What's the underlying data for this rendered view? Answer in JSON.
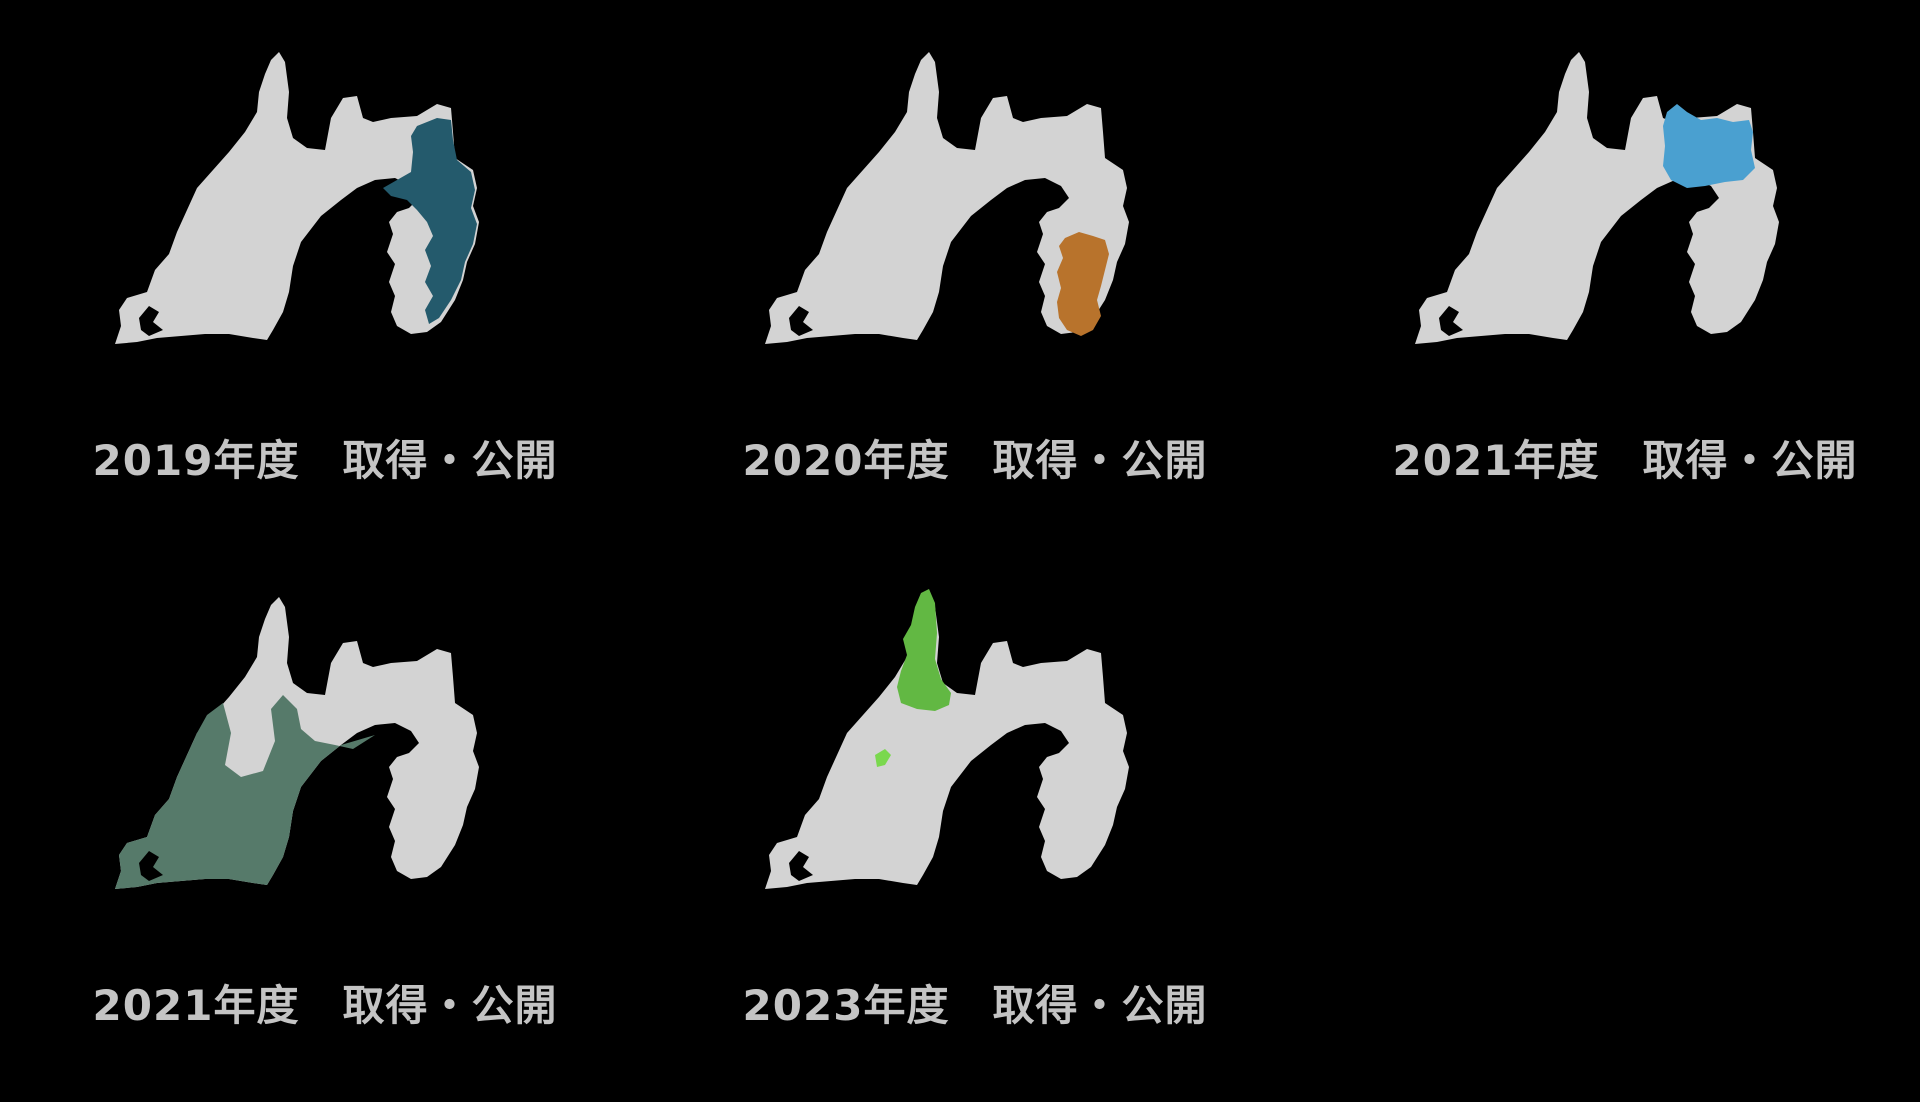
{
  "colors": {
    "background": "#000000",
    "land": "#d3d3d3",
    "caption": "#c4c4c4"
  },
  "panels": [
    {
      "caption": "2019年度　取得・公開",
      "highlight_color": "#245a6c",
      "region": "east-peninsula"
    },
    {
      "caption": "2020年度　取得・公開",
      "highlight_color": "#b8732c",
      "region": "peninsula-center"
    },
    {
      "caption": "2021年度　取得・公開",
      "highlight_color": "#4aa0d0",
      "region": "northeast"
    },
    {
      "caption": "2021年度　取得・公開",
      "highlight_color": "#567a6a",
      "region": "west-central"
    },
    {
      "caption": "2023年度　取得・公開",
      "highlight_color": "#62b843",
      "region": "north-tip"
    }
  ]
}
